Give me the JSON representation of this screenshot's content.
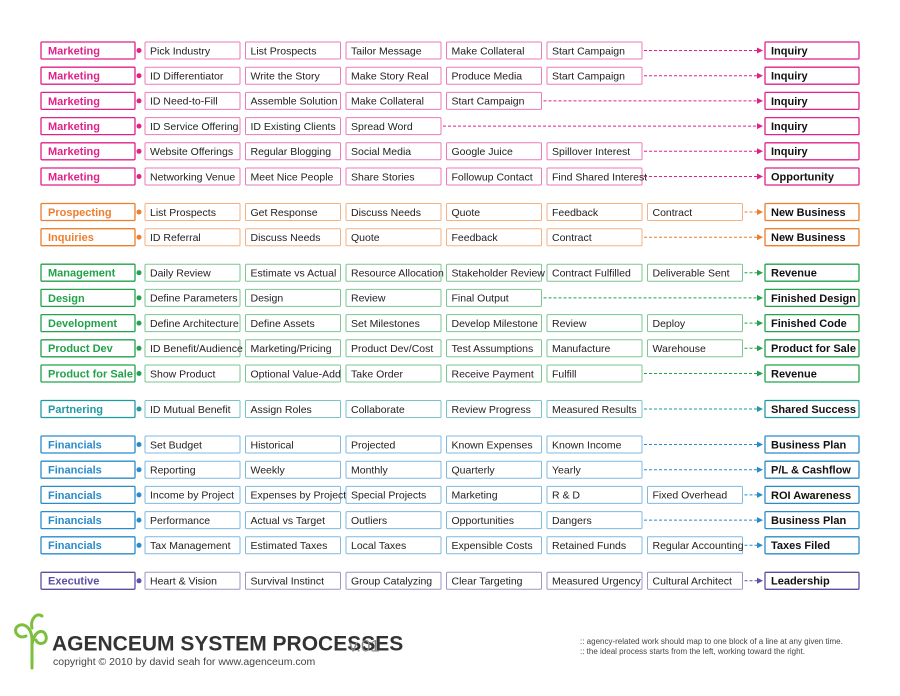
{
  "groups": [
    {
      "color": "#e0218a",
      "rows": [
        {
          "label": "Marketing",
          "steps": [
            "Pick Industry",
            "List Prospects",
            "Tailor Message",
            "Make Collateral",
            "Start Campaign"
          ],
          "outcome": "Inquiry"
        },
        {
          "label": "Marketing",
          "steps": [
            "ID Differentiator",
            "Write the Story",
            "Make Story Real",
            "Produce Media",
            "Start Campaign"
          ],
          "outcome": "Inquiry"
        },
        {
          "label": "Marketing",
          "steps": [
            "ID Need-to-Fill",
            "Assemble Solution",
            "Make Collateral",
            "Start Campaign"
          ],
          "outcome": "Inquiry"
        },
        {
          "label": "Marketing",
          "steps": [
            "ID Service Offering",
            "ID Existing Clients",
            "Spread Word"
          ],
          "outcome": "Inquiry"
        },
        {
          "label": "Marketing",
          "steps": [
            "Website Offerings",
            "Regular Blogging",
            "Social Media",
            "Google Juice",
            "Spillover Interest"
          ],
          "outcome": "Inquiry"
        },
        {
          "label": "Marketing",
          "steps": [
            "Networking Venue",
            "Meet Nice People",
            "Share Stories",
            "Followup Contact",
            "Find Shared Interest"
          ],
          "outcome": "Opportunity"
        }
      ]
    },
    {
      "color": "#ef7d2e",
      "rows": [
        {
          "label": "Prospecting",
          "steps": [
            "List Prospects",
            "Get Response",
            "Discuss Needs",
            "Quote",
            "Feedback",
            "Contract"
          ],
          "outcome": "New Business"
        },
        {
          "label": "Inquiries",
          "steps": [
            "ID Referral",
            "Discuss Needs",
            "Quote",
            "Feedback",
            "Contract"
          ],
          "outcome": "New Business"
        }
      ]
    },
    {
      "color": "#22a24a",
      "rows": [
        {
          "label": "Management",
          "steps": [
            "Daily Review",
            "Estimate vs Actual",
            "Resource Allocation",
            "Stakeholder Review",
            "Contract Fulfilled",
            "Deliverable Sent"
          ],
          "outcome": "Revenue"
        },
        {
          "label": "Design",
          "steps": [
            "Define Parameters",
            "Design",
            "Review",
            "Final Output"
          ],
          "outcome": "Finished Design"
        },
        {
          "label": "Development",
          "steps": [
            "Define Architecture",
            "Define Assets",
            "Set Milestones",
            "Develop Milestone",
            "Review",
            "Deploy"
          ],
          "outcome": "Finished Code"
        },
        {
          "label": "Product Dev",
          "steps": [
            "ID Benefit/Audience",
            "Marketing/Pricing",
            "Product Dev/Cost",
            "Test Assumptions",
            "Manufacture",
            "Warehouse"
          ],
          "outcome": "Product for Sale"
        },
        {
          "label": "Product for Sale",
          "steps": [
            "Show Product",
            "Optional Value-Add",
            "Take Order",
            "Receive Payment",
            "Fulfill"
          ],
          "outcome": "Revenue"
        }
      ]
    },
    {
      "color": "#1f9aa3",
      "rows": [
        {
          "label": "Partnering",
          "steps": [
            "ID Mutual Benefit",
            "Assign Roles",
            "Collaborate",
            "Review Progress",
            "Measured Results"
          ],
          "outcome": "Shared Success"
        }
      ]
    },
    {
      "color": "#2a8bcb",
      "rows": [
        {
          "label": "Financials",
          "steps": [
            "Set Budget",
            "Historical",
            "Projected",
            "Known Expenses",
            "Known Income"
          ],
          "outcome": "Business Plan"
        },
        {
          "label": "Financials",
          "steps": [
            "Reporting",
            "Weekly",
            "Monthly",
            "Quarterly",
            "Yearly"
          ],
          "outcome": "P/L & Cashflow"
        },
        {
          "label": "Financials",
          "steps": [
            "Income by Project",
            "Expenses by Project",
            "Special Projects",
            "Marketing",
            "R & D",
            "Fixed Overhead"
          ],
          "outcome": "ROI Awareness"
        },
        {
          "label": "Financials",
          "steps": [
            "Performance",
            "Actual vs Target",
            "Outliers",
            "Opportunities",
            "Dangers"
          ],
          "outcome": "Business Plan"
        },
        {
          "label": "Financials",
          "steps": [
            "Tax Management",
            "Estimated Taxes",
            "Local Taxes",
            "Expensible Costs",
            "Retained Funds",
            "Regular Accounting"
          ],
          "outcome": "Taxes Filed"
        }
      ]
    },
    {
      "color": "#5e4fa2",
      "rows": [
        {
          "label": "Executive",
          "steps": [
            "Heart & Vision",
            "Survival Instinct",
            "Group Catalyzing",
            "Clear Targeting",
            "Measured Urgency",
            "Cultural Architect"
          ],
          "outcome": "Leadership"
        }
      ]
    }
  ],
  "footer": {
    "title": "AGENCEUM SYSTEM PROCESSES",
    "version": "v.01",
    "copyright": "copyright © 2010 by david seah for www.agenceum.com",
    "notes": [
      ":: agency-related work should map to one block of a line at any given time.",
      ":: the ideal process starts from the left, working toward the right."
    ]
  }
}
